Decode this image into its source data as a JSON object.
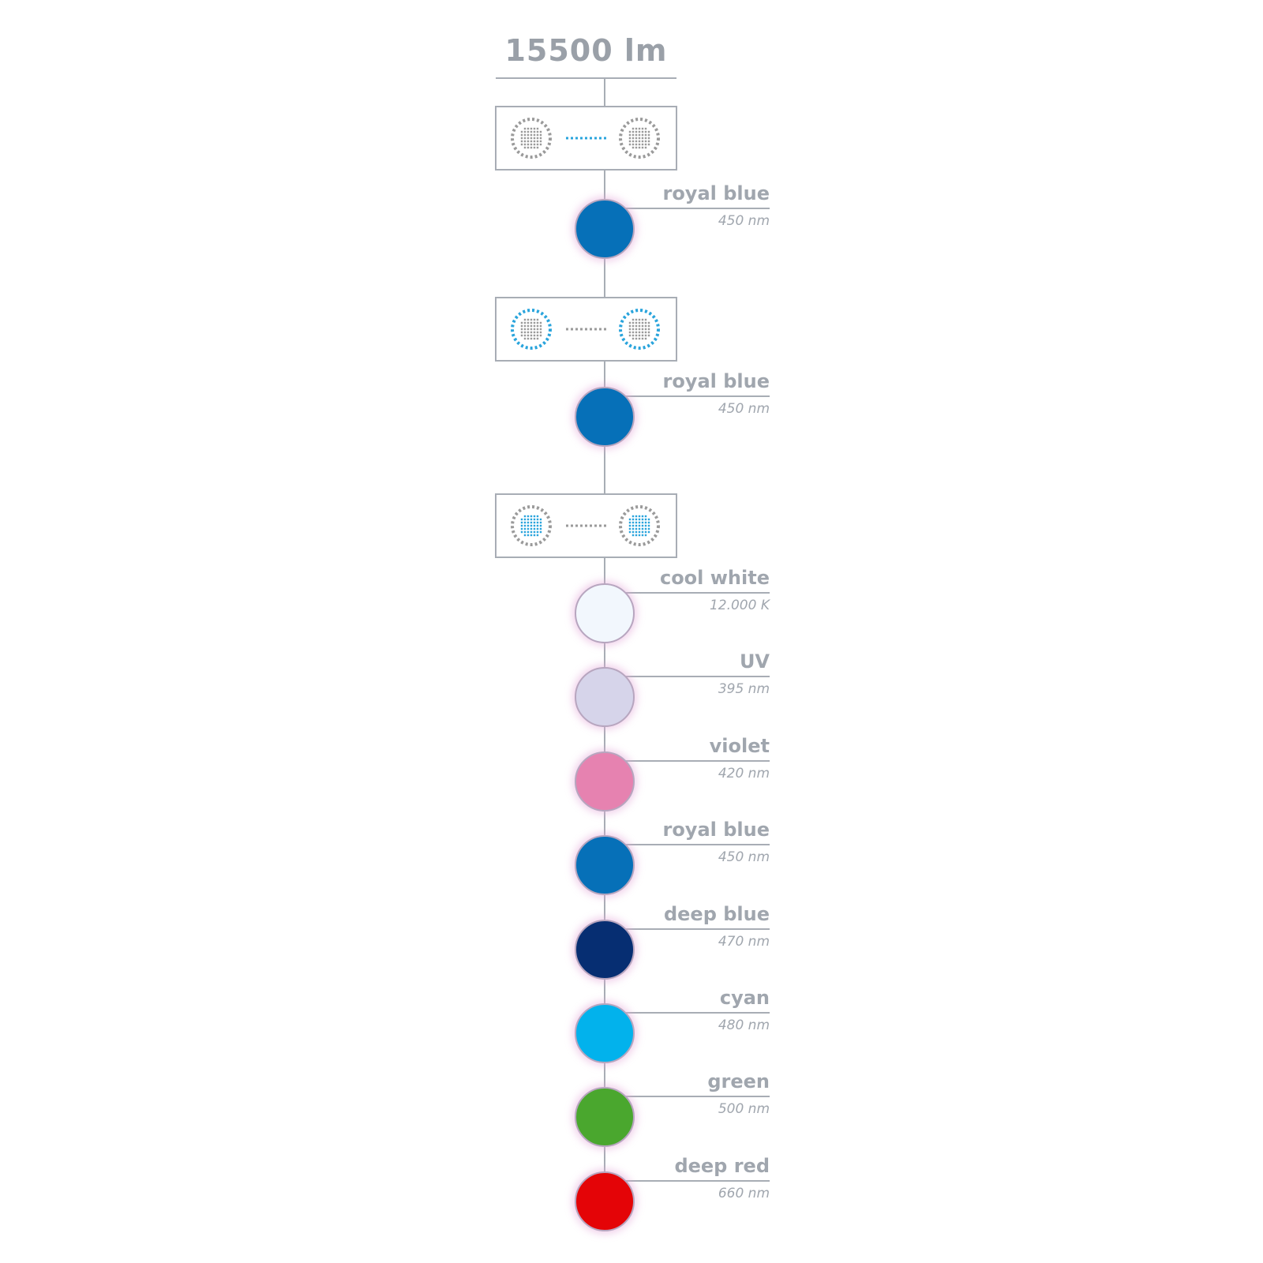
{
  "header": {
    "total_output": "15500 lm"
  },
  "colors": {
    "line": "#a8adb5",
    "box_border": "#a8adb5",
    "dot_grey": "#9a9a9a",
    "dot_blue": "#29a4dc",
    "text": "#a0a6ae"
  },
  "modules": [
    {
      "id": "module-1",
      "active_part": "link"
    },
    {
      "id": "module-2",
      "active_part": "outer-ring"
    },
    {
      "id": "module-3",
      "active_part": "inner-grid"
    }
  ],
  "channels": [
    {
      "name": "royal blue",
      "value": "450 nm",
      "color": "#0670b8"
    },
    {
      "name": "royal blue",
      "value": "450 nm",
      "color": "#0670b8"
    },
    {
      "name": "cool white",
      "value": "12.000 K",
      "color": "#f2f7fd"
    },
    {
      "name": "UV",
      "value": "395 nm",
      "color": "#d6d4ea"
    },
    {
      "name": "violet",
      "value": "420 nm",
      "color": "#e682b0"
    },
    {
      "name": "royal blue",
      "value": "450 nm",
      "color": "#0670b8"
    },
    {
      "name": "deep blue",
      "value": "470 nm",
      "color": "#062e72"
    },
    {
      "name": "cyan",
      "value": "480 nm",
      "color": "#02b2ec"
    },
    {
      "name": "green",
      "value": "500 nm",
      "color": "#4aa72e"
    },
    {
      "name": "deep red",
      "value": "660 nm",
      "color": "#e40407"
    }
  ]
}
